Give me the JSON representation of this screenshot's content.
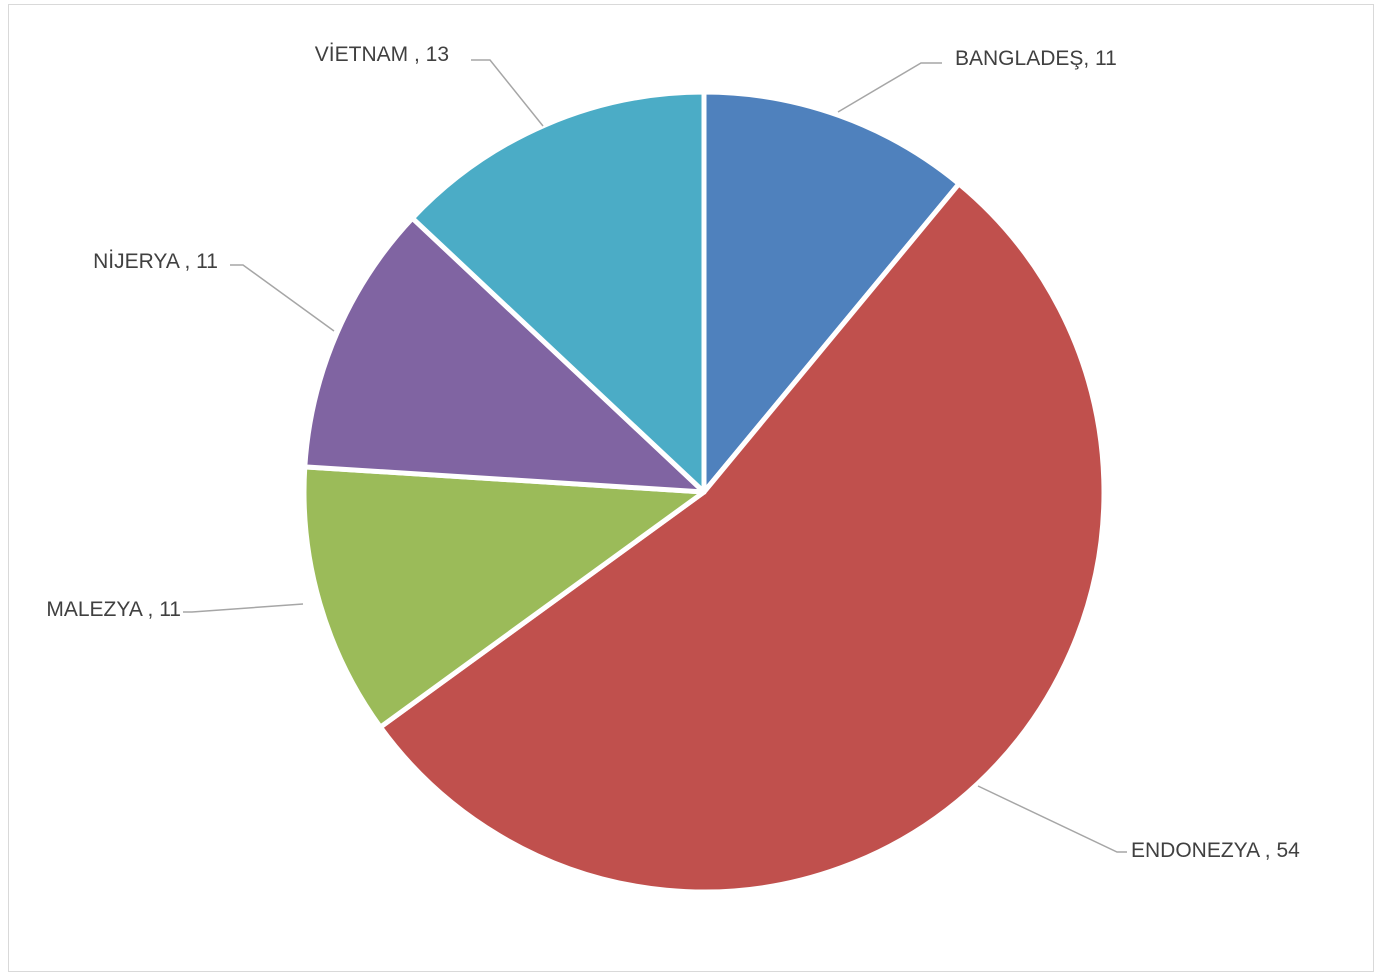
{
  "chart_data": {
    "type": "pie",
    "title": "",
    "categories": [
      "BANGLADEŞ",
      "ENDONEZYA",
      "MALEZYA",
      "NİJERYA",
      "VİETNAM"
    ],
    "values": [
      11,
      54,
      11,
      11,
      13
    ],
    "slices": [
      {
        "name": "BANGLADEŞ",
        "value": 11,
        "label": "BANGLADEŞ, 11",
        "color": "#4f81bd"
      },
      {
        "name": "ENDONEZYA",
        "value": 54,
        "label": "ENDONEZYA , 54",
        "color": "#c0504d"
      },
      {
        "name": "MALEZYA",
        "value": 11,
        "label": "MALEZYA , 11",
        "color": "#9bbb59"
      },
      {
        "name": "NİJERYA",
        "value": 11,
        "label": "NİJERYA , 11",
        "color": "#8064a2"
      },
      {
        "name": "VİETNAM",
        "value": 13,
        "label": "VİETNAM , 13",
        "color": "#4bacc6"
      }
    ],
    "start_angle_deg": 0,
    "direction": "clockwise",
    "legend": "none",
    "data_labels": "outside-with-leader-lines"
  }
}
